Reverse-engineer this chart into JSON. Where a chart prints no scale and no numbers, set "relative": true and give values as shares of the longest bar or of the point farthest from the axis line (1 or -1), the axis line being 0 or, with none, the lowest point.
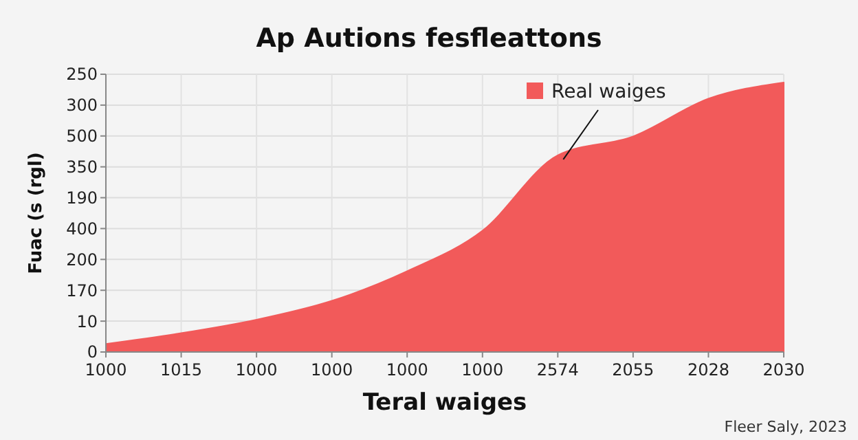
{
  "chart_data": {
    "type": "area",
    "title": "Ap Autions fesfleattons",
    "xlabel": "Teral waiges",
    "ylabel": "Fuac (s (rgl)",
    "categories": [
      "1000",
      "1015",
      "1000",
      "1000",
      "1000",
      "1000",
      "2574",
      "2055",
      "2028",
      "2030"
    ],
    "series": [
      {
        "name": "Real waiges",
        "color": "#f25a5a",
        "values": [
          0.03,
          0.07,
          0.12,
          0.19,
          0.3,
          0.45,
          0.73,
          0.8,
          0.94,
          1
        ]
      }
    ],
    "relative": true,
    "grid": true,
    "legend": "top right",
    "annotations": [
      "0",
      "10",
      "170",
      "200",
      "400",
      "190",
      "350",
      "500",
      "300",
      "250",
      "Fleer Saly, 2023"
    ]
  }
}
